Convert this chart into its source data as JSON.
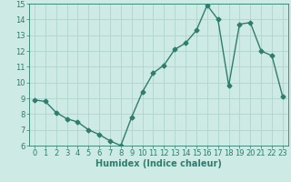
{
  "x": [
    0,
    1,
    2,
    3,
    4,
    5,
    6,
    7,
    8,
    9,
    10,
    11,
    12,
    13,
    14,
    15,
    16,
    17,
    18,
    19,
    20,
    21,
    22,
    23
  ],
  "y": [
    8.9,
    8.8,
    8.1,
    7.7,
    7.5,
    7.0,
    6.7,
    6.3,
    6.0,
    7.8,
    9.4,
    10.6,
    11.1,
    12.1,
    12.5,
    13.3,
    14.9,
    14.0,
    9.8,
    13.7,
    13.8,
    12.0,
    11.7,
    9.1
  ],
  "line_color": "#2e7d6e",
  "marker": "D",
  "marker_size": 2.5,
  "bg_color": "#ceeae4",
  "grid_color": "#afd4cc",
  "xlabel": "Humidex (Indice chaleur)",
  "ylim": [
    6,
    15
  ],
  "xlim": [
    -0.5,
    23.5
  ],
  "yticks": [
    6,
    7,
    8,
    9,
    10,
    11,
    12,
    13,
    14,
    15
  ],
  "xticks": [
    0,
    1,
    2,
    3,
    4,
    5,
    6,
    7,
    8,
    9,
    10,
    11,
    12,
    13,
    14,
    15,
    16,
    17,
    18,
    19,
    20,
    21,
    22,
    23
  ],
  "xlabel_fontsize": 7,
  "tick_fontsize": 6,
  "linewidth": 1.0
}
